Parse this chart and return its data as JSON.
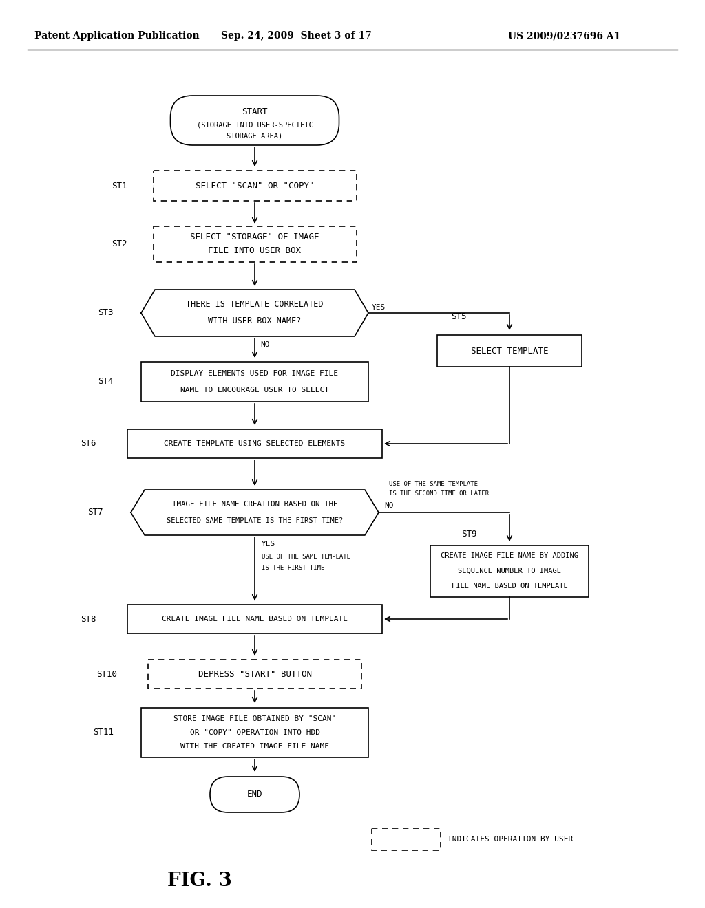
{
  "bg_color": "#ffffff",
  "header_left": "Patent Application Publication",
  "header_mid": "Sep. 24, 2009  Sheet 3 of 17",
  "header_right": "US 2009/0237696 A1",
  "figure_label": "FIG. 3",
  "legend_text": "INDICATES OPERATION BY USER"
}
